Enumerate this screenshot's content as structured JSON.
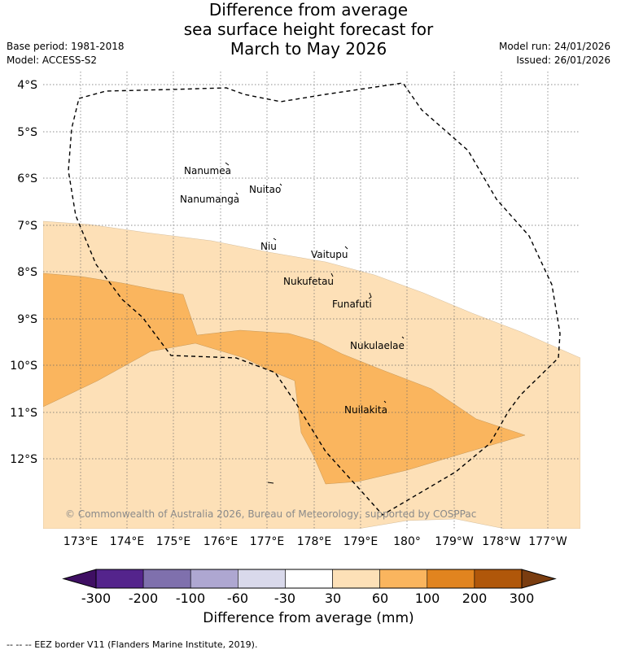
{
  "title": {
    "line1": "Difference from average",
    "line2": "sea surface height forecast for",
    "line3": "March to May 2026"
  },
  "meta": {
    "base_period": "Base period: 1981-2018",
    "model": "Model: ACCESS-S2",
    "model_run": "Model run: 24/01/2026",
    "issued": "Issued: 26/01/2026"
  },
  "map": {
    "lat_labels": [
      "4°S",
      "5°S",
      "6°S",
      "7°S",
      "8°S",
      "9°S",
      "10°S",
      "11°S",
      "12°S"
    ],
    "lon_labels": [
      "173°E",
      "174°E",
      "175°E",
      "176°E",
      "177°E",
      "178°E",
      "179°E",
      "180°",
      "179°W",
      "178°W",
      "177°W"
    ],
    "places": [
      "Nanumea",
      "Nuitao",
      "Nanumanga",
      "Niu",
      "Vaitupu",
      "Nukufetau",
      "Funafuti",
      "Nukulaelae",
      "Nuilakita"
    ],
    "copyright": "© Commonwealth of Australia 2026, Bureau of Meteorology, supported by COSPPac",
    "colors": {
      "light_orange": "#fde0b7",
      "mid_orange": "#fab55e",
      "border": "#000000"
    }
  },
  "colorbar": {
    "ticks": [
      "-300",
      "-200",
      "-100",
      "-60",
      "-30",
      "30",
      "60",
      "100",
      "200",
      "300"
    ],
    "colors": [
      "#3f0f63",
      "#54248c",
      "#7f70ad",
      "#aea7d1",
      "#d9d9eb",
      "#ffffff",
      "#fde0b7",
      "#fab55e",
      "#e1841f",
      "#b0570a",
      "#7a3d10"
    ],
    "label": "Difference from average (mm)"
  },
  "footer": "--  --  -- EEZ border V11 (Flanders Marine Institute, 2019)."
}
